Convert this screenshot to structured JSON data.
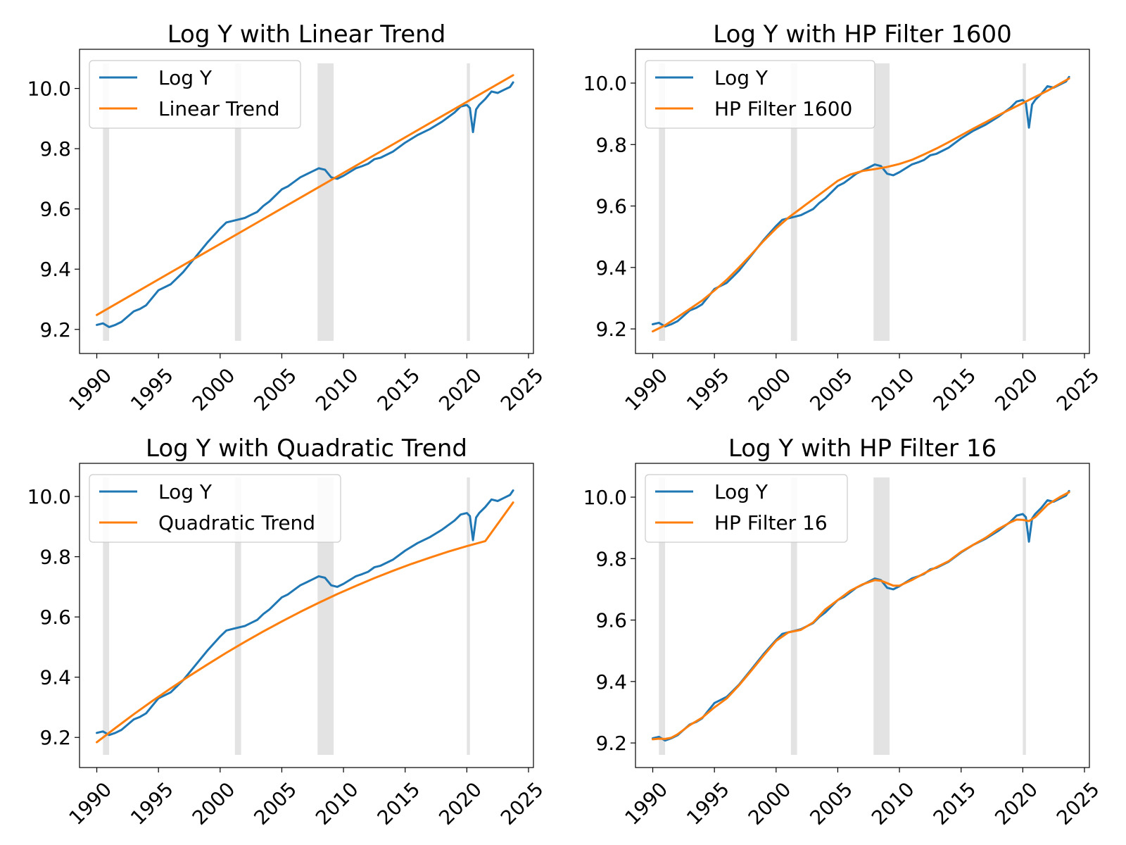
{
  "chart_data": [
    {
      "type": "line",
      "title": "Log Y with Linear Trend",
      "xlim": [
        1988.6,
        2025.4
      ],
      "ylim": [
        9.12,
        10.13
      ],
      "xticks": [
        1990,
        1995,
        2000,
        2005,
        2010,
        2015,
        2020,
        2025
      ],
      "yticks": [
        9.2,
        9.4,
        9.6,
        9.8,
        10.0
      ],
      "ytick_labels": [
        "9.2",
        "9.4",
        "9.6",
        "9.8",
        "10.0"
      ],
      "legend_position": "upper-left",
      "grid": false,
      "shaded_periods": [
        [
          1990.5,
          1991.0
        ],
        [
          2001.2,
          2001.7
        ],
        [
          2007.9,
          2009.2
        ],
        [
          2020.0,
          2020.25
        ]
      ],
      "series": [
        {
          "name": "Log Y",
          "color": "#1f77b4",
          "role": "log_y"
        },
        {
          "name": "Linear Trend",
          "color": "#ff7f0e",
          "role": "trend",
          "x": [
            1990.0,
            2023.75
          ],
          "y": [
            9.248,
            10.044
          ]
        }
      ]
    },
    {
      "type": "line",
      "title": "Log Y with HP Filter 1600",
      "xlim": [
        1988.6,
        2025.4
      ],
      "ylim": [
        9.12,
        10.11
      ],
      "xticks": [
        1990,
        1995,
        2000,
        2005,
        2010,
        2015,
        2020,
        2025
      ],
      "yticks": [
        9.2,
        9.4,
        9.6,
        9.8,
        10.0
      ],
      "ytick_labels": [
        "9.2",
        "9.4",
        "9.6",
        "9.8",
        "10.0"
      ],
      "legend_position": "upper-left",
      "grid": false,
      "shaded_periods": [
        [
          1990.5,
          1991.0
        ],
        [
          2001.2,
          2001.7
        ],
        [
          2007.9,
          2009.2
        ],
        [
          2020.0,
          2020.25
        ]
      ],
      "series": [
        {
          "name": "Log Y",
          "color": "#1f77b4",
          "role": "log_y"
        },
        {
          "name": "HP Filter 1600",
          "color": "#ff7f0e",
          "role": "trend",
          "x": [
            1990,
            1991,
            1992,
            1993,
            1994,
            1995,
            1996,
            1997,
            1998,
            1999,
            2000,
            2001,
            2002,
            2003,
            2004,
            2005,
            2006,
            2007,
            2008,
            2009,
            2010,
            2011,
            2012,
            2013,
            2014,
            2015,
            2016,
            2017,
            2018,
            2019,
            2020,
            2021,
            2022,
            2023.75
          ],
          "y": [
            9.192,
            9.212,
            9.238,
            9.265,
            9.292,
            9.325,
            9.36,
            9.4,
            9.443,
            9.487,
            9.527,
            9.562,
            9.592,
            9.622,
            9.652,
            9.682,
            9.702,
            9.714,
            9.72,
            9.727,
            9.737,
            9.75,
            9.768,
            9.787,
            9.808,
            9.83,
            9.852,
            9.873,
            9.895,
            9.915,
            9.935,
            9.955,
            9.975,
            10.015
          ]
        }
      ]
    },
    {
      "type": "line",
      "title": "Log Y with Quadratic Trend",
      "xlim": [
        1988.6,
        2025.4
      ],
      "ylim": [
        9.1,
        10.11
      ],
      "xticks": [
        1990,
        1995,
        2000,
        2005,
        2010,
        2015,
        2020,
        2025
      ],
      "yticks": [
        9.2,
        9.4,
        9.6,
        9.8,
        10.0
      ],
      "ytick_labels": [
        "9.2",
        "9.4",
        "9.6",
        "9.8",
        "10.0"
      ],
      "legend_position": "upper-left",
      "grid": false,
      "shaded_periods": [
        [
          1990.5,
          1991.0
        ],
        [
          2001.2,
          2001.7
        ],
        [
          2007.9,
          2009.2
        ],
        [
          2020.0,
          2020.25
        ]
      ],
      "series": [
        {
          "name": "Log Y",
          "color": "#1f77b4",
          "role": "log_y"
        },
        {
          "name": "Quadratic Trend",
          "color": "#ff7f0e",
          "role": "trend",
          "x": [
            1990,
            1991.5,
            1993,
            1994.5,
            1996,
            1997.5,
            1999,
            2000.5,
            2002,
            2003.5,
            2005,
            2006.5,
            2008,
            2009.5,
            2011,
            2012.5,
            2014,
            2015.5,
            2017,
            2018.5,
            2020,
            2021.5,
            2023.75
          ],
          "y": [
            9.184,
            9.231,
            9.277,
            9.321,
            9.363,
            9.404,
            9.443,
            9.481,
            9.517,
            9.552,
            9.585,
            9.617,
            9.647,
            9.676,
            9.703,
            9.729,
            9.753,
            9.776,
            9.797,
            9.817,
            9.835,
            9.852,
            9.98
          ]
        }
      ]
    },
    {
      "type": "line",
      "title": "Log Y with HP Filter 16",
      "xlim": [
        1988.6,
        2025.4
      ],
      "ylim": [
        9.12,
        10.11
      ],
      "xticks": [
        1990,
        1995,
        2000,
        2005,
        2010,
        2015,
        2020,
        2025
      ],
      "yticks": [
        9.2,
        9.4,
        9.6,
        9.8,
        10.0
      ],
      "ytick_labels": [
        "9.2",
        "9.4",
        "9.6",
        "9.8",
        "10.0"
      ],
      "legend_position": "upper-left",
      "grid": false,
      "shaded_periods": [
        [
          1990.5,
          1991.0
        ],
        [
          2001.2,
          2001.7
        ],
        [
          2007.9,
          2009.2
        ],
        [
          2020.0,
          2020.25
        ]
      ],
      "series": [
        {
          "name": "Log Y",
          "color": "#1f77b4",
          "role": "log_y"
        },
        {
          "name": "HP Filter 16",
          "color": "#ff7f0e",
          "role": "trend",
          "x": [
            1990,
            1990.5,
            1991,
            1991.5,
            1992,
            1993,
            1994,
            1995,
            1996,
            1997,
            1998,
            1999,
            2000,
            2001,
            2002,
            2003,
            2004,
            2005,
            2006,
            2007,
            2008,
            2008.5,
            2009,
            2009.5,
            2010,
            2011,
            2012,
            2013,
            2014,
            2015,
            2016,
            2017,
            2018,
            2019,
            2019.5,
            2020,
            2020.5,
            2021,
            2022,
            2023,
            2023.75
          ],
          "y": [
            9.212,
            9.214,
            9.213,
            9.217,
            9.228,
            9.258,
            9.282,
            9.316,
            9.345,
            9.388,
            9.436,
            9.485,
            9.532,
            9.56,
            9.568,
            9.592,
            9.635,
            9.665,
            9.695,
            9.716,
            9.73,
            9.728,
            9.72,
            9.712,
            9.712,
            9.73,
            9.752,
            9.772,
            9.792,
            9.822,
            9.845,
            9.868,
            9.896,
            9.918,
            9.927,
            9.926,
            9.922,
            9.935,
            9.975,
            10.0,
            10.016
          ]
        }
      ]
    }
  ],
  "shared_log_y": {
    "name": "Log Y",
    "x": [
      1990,
      1990.5,
      1991,
      1991.5,
      1992,
      1993,
      1993.5,
      1994,
      1995,
      1996,
      1996.5,
      1997,
      1998,
      1999,
      2000,
      2000.5,
      2001,
      2001.5,
      2002,
      2002.5,
      2003,
      2003.5,
      2004,
      2005,
      2005.5,
      2006,
      2006.5,
      2007,
      2007.5,
      2008,
      2008.5,
      2009,
      2009.5,
      2010,
      2011,
      2011.5,
      2012,
      2012.5,
      2013,
      2014,
      2015,
      2016,
      2017,
      2018,
      2019,
      2019.5,
      2020,
      2020.25,
      2020.5,
      2020.75,
      2021,
      2021.5,
      2022,
      2022.5,
      2023,
      2023.5,
      2023.75
    ],
    "y": [
      9.215,
      9.22,
      9.208,
      9.215,
      9.225,
      9.26,
      9.268,
      9.28,
      9.33,
      9.35,
      9.37,
      9.39,
      9.44,
      9.49,
      9.535,
      9.555,
      9.56,
      9.565,
      9.57,
      9.58,
      9.59,
      9.61,
      9.625,
      9.665,
      9.675,
      9.69,
      9.705,
      9.715,
      9.725,
      9.735,
      9.73,
      9.705,
      9.7,
      9.71,
      9.735,
      9.742,
      9.75,
      9.765,
      9.77,
      9.79,
      9.82,
      9.845,
      9.865,
      9.89,
      9.92,
      9.94,
      9.945,
      9.935,
      9.855,
      9.93,
      9.945,
      9.965,
      9.99,
      9.985,
      9.995,
      10.005,
      10.02
    ]
  },
  "layout_names": {
    "figure": "figure",
    "panels": [
      "panel-linear-trend",
      "panel-hp-filter-1600",
      "panel-quadratic-trend",
      "panel-hp-filter-16"
    ]
  }
}
